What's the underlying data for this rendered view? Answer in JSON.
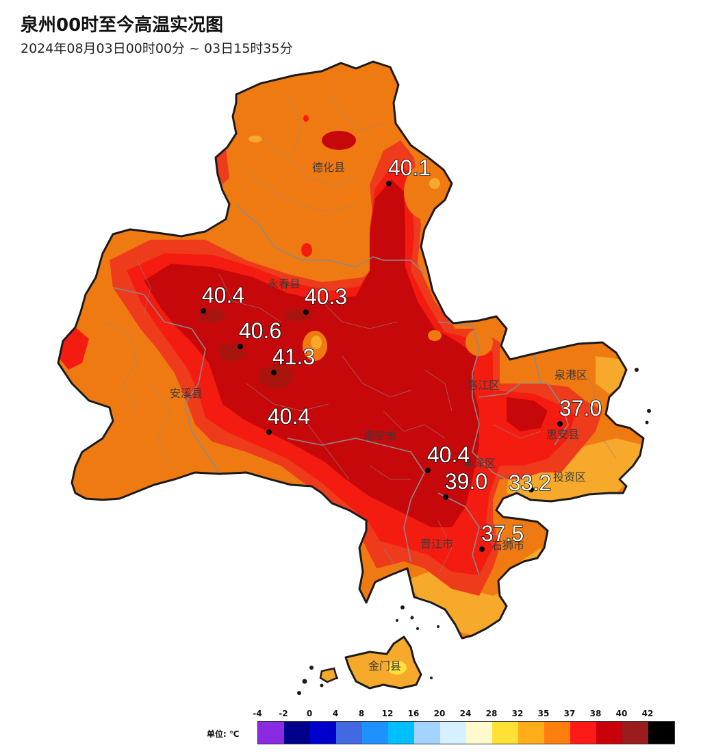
{
  "title": "泉州00时至今高温实况图",
  "subtitle": "2024年08月03日00时00分 ~ 03日15时35分",
  "colors": {
    "background": "#ffffff",
    "outline": "#1a1a1a",
    "boundary": "#8a8a8a",
    "band_35_37": "#f07a12",
    "band_37_38": "#ee3b1c",
    "band_38_40": "#f41c10",
    "band_40_42": "#c7080a",
    "band_42_plus": "#a8140e",
    "band_32_35": "#f6a92b"
  },
  "places": [
    {
      "name": "德化县"
    },
    {
      "name": "永春县"
    },
    {
      "name": "安溪县"
    },
    {
      "name": "南安市"
    },
    {
      "name": "洛江区"
    },
    {
      "name": "泉港区"
    },
    {
      "name": "惠安县"
    },
    {
      "name": "丰泽区"
    },
    {
      "name": "投资区"
    },
    {
      "name": "晋江市"
    },
    {
      "name": "石狮市"
    },
    {
      "name": "金门县"
    }
  ],
  "stations": [
    {
      "value": "40.1"
    },
    {
      "value": "40.4"
    },
    {
      "value": "40.3"
    },
    {
      "value": "40.6"
    },
    {
      "value": "41.3"
    },
    {
      "value": "40.4"
    },
    {
      "value": "40.4"
    },
    {
      "value": "39.0"
    },
    {
      "value": "33.2"
    },
    {
      "value": "37.5"
    },
    {
      "value": "37.0"
    }
  ],
  "legend": {
    "unit_label": "单位: ℃",
    "ticks": [
      "-4",
      "-2",
      "0",
      "4",
      "8",
      "12",
      "16",
      "20",
      "24",
      "28",
      "32",
      "35",
      "37",
      "38",
      "40",
      "42"
    ],
    "colors": [
      "#8a2be2",
      "#00008b",
      "#0000cd",
      "#4169e1",
      "#1e90ff",
      "#00bfff",
      "#a4d3ff",
      "#d6f0ff",
      "#fffacd",
      "#ffe135",
      "#ffae1a",
      "#ff7f0e",
      "#ff1a1a",
      "#c8000a",
      "#9b1c1c",
      "#000000"
    ]
  }
}
